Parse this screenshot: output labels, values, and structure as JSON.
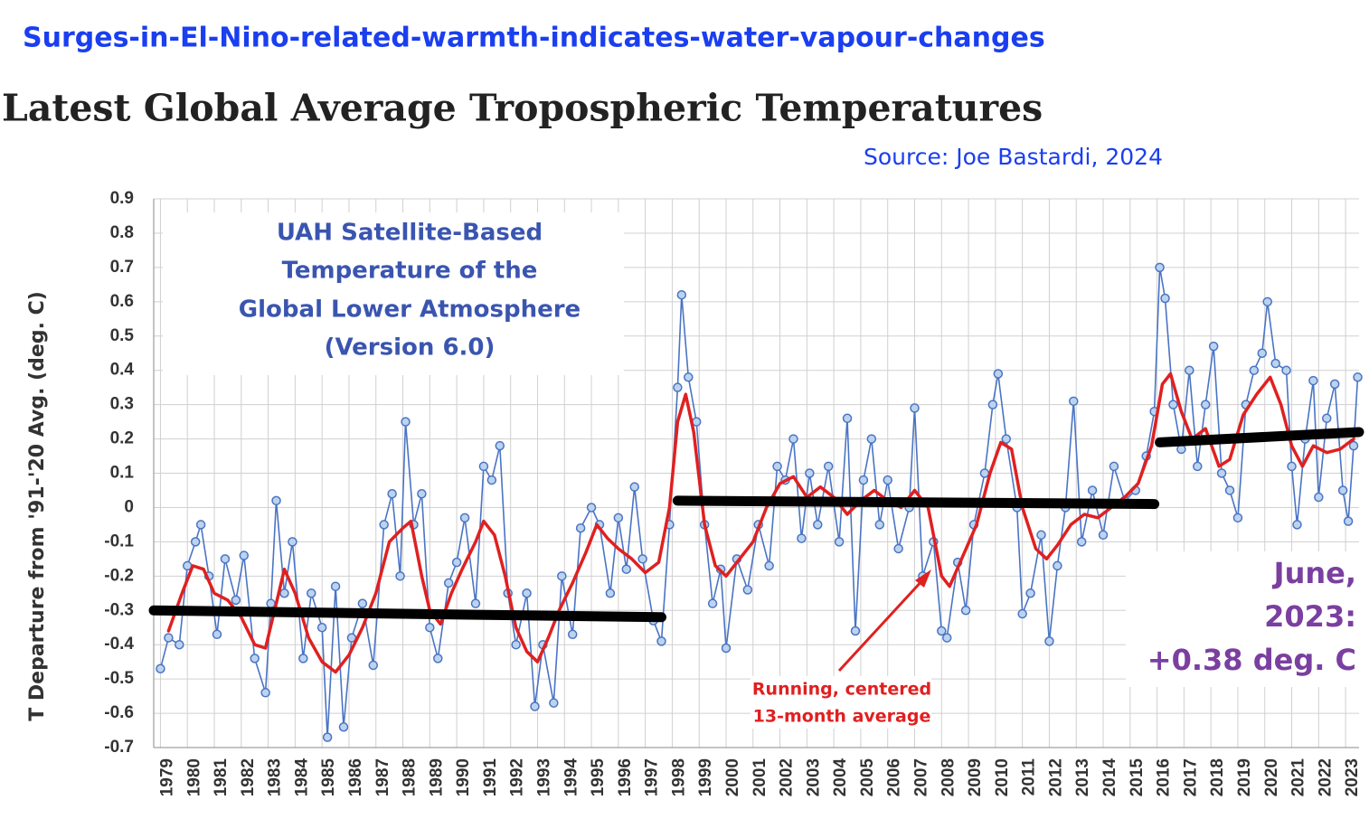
{
  "chart_data": {
    "type": "line",
    "heading": "Surges-in-El-Nino-related-warmth-indicates-water-vapour-changes",
    "title": "Latest Global Average Tropospheric Temperatures",
    "subtitle": "Source: Joe Bastardi, 2024",
    "y_label": "T Departure from '91-'20 Avg. (deg. C)",
    "box_text": [
      "UAH Satellite-Based",
      "Temperature of the",
      "Global Lower Atmosphere",
      "(Version 6.0)"
    ],
    "latest_text": [
      "June,",
      "2023:",
      "+0.38 deg. C"
    ],
    "average_text": [
      "Running, centered",
      "13-month average"
    ],
    "xlim": [
      1978.75,
      2023.5
    ],
    "ylim": [
      -0.7,
      0.9
    ],
    "yticks": [
      -0.7,
      -0.6,
      -0.5,
      -0.4,
      -0.3,
      -0.2,
      -0.1,
      0,
      0.1,
      0.2,
      0.3,
      0.4,
      0.5,
      0.6,
      0.7,
      0.8,
      0.9
    ],
    "xticks": [
      1979,
      1980,
      1981,
      1982,
      1983,
      1984,
      1985,
      1986,
      1987,
      1988,
      1989,
      1990,
      1991,
      1992,
      1993,
      1994,
      1995,
      1996,
      1997,
      1998,
      1999,
      2000,
      2001,
      2002,
      2003,
      2004,
      2005,
      2006,
      2007,
      2008,
      2009,
      2010,
      2011,
      2012,
      2013,
      2014,
      2015,
      2016,
      2017,
      2018,
      2019,
      2020,
      2021,
      2022,
      2023
    ],
    "grid": true,
    "series": [
      {
        "color": "#4a74c4",
        "markers": true,
        "x": [
          1979.0,
          1979.3,
          1979.7,
          1980.0,
          1980.3,
          1980.5,
          1980.8,
          1981.1,
          1981.4,
          1981.8,
          1982.1,
          1982.5,
          1982.9,
          1983.1,
          1983.3,
          1983.6,
          1983.9,
          1984.3,
          1984.6,
          1985.0,
          1985.2,
          1985.5,
          1985.8,
          1986.1,
          1986.5,
          1986.9,
          1987.3,
          1987.6,
          1987.9,
          1988.1,
          1988.4,
          1988.7,
          1989.0,
          1989.3,
          1989.7,
          1990.0,
          1990.3,
          1990.7,
          1991.0,
          1991.3,
          1991.6,
          1991.9,
          1992.2,
          1992.6,
          1992.9,
          1993.2,
          1993.6,
          1993.9,
          1994.3,
          1994.6,
          1995.0,
          1995.3,
          1995.7,
          1996.0,
          1996.3,
          1996.6,
          1996.9,
          1997.3,
          1997.6,
          1997.9,
          1998.2,
          1998.35,
          1998.6,
          1998.9,
          1999.2,
          1999.5,
          1999.8,
          2000.0,
          2000.4,
          2000.8,
          2001.2,
          2001.6,
          2001.9,
          2002.2,
          2002.5,
          2002.8,
          2003.1,
          2003.4,
          2003.8,
          2004.2,
          2004.5,
          2004.8,
          2005.1,
          2005.4,
          2005.7,
          2006.0,
          2006.4,
          2006.8,
          2007.0,
          2007.3,
          2007.7,
          2008.0,
          2008.2,
          2008.6,
          2008.9,
          2009.2,
          2009.6,
          2009.9,
          2010.1,
          2010.4,
          2010.8,
          2011.0,
          2011.3,
          2011.7,
          2012.0,
          2012.3,
          2012.6,
          2012.9,
          2013.2,
          2013.6,
          2014.0,
          2014.4,
          2014.8,
          2015.2,
          2015.6,
          2015.9,
          2016.1,
          2016.3,
          2016.6,
          2016.9,
          2017.2,
          2017.5,
          2017.8,
          2018.1,
          2018.4,
          2018.7,
          2019.0,
          2019.3,
          2019.6,
          2019.9,
          2020.1,
          2020.4,
          2020.8,
          2021.0,
          2021.2,
          2021.5,
          2021.8,
          2022.0,
          2022.3,
          2022.6,
          2022.9,
          2023.1,
          2023.3,
          2023.45
        ],
        "values": [
          -0.47,
          -0.38,
          -0.4,
          -0.17,
          -0.1,
          -0.05,
          -0.2,
          -0.37,
          -0.15,
          -0.27,
          -0.14,
          -0.44,
          -0.54,
          -0.28,
          0.02,
          -0.25,
          -0.1,
          -0.44,
          -0.25,
          -0.35,
          -0.67,
          -0.23,
          -0.64,
          -0.38,
          -0.28,
          -0.46,
          -0.05,
          0.04,
          -0.2,
          0.25,
          -0.05,
          0.04,
          -0.35,
          -0.44,
          -0.22,
          -0.16,
          -0.03,
          -0.28,
          0.12,
          0.08,
          0.18,
          -0.25,
          -0.4,
          -0.25,
          -0.58,
          -0.4,
          -0.57,
          -0.2,
          -0.37,
          -0.06,
          0.0,
          -0.05,
          -0.25,
          -0.03,
          -0.18,
          0.06,
          -0.15,
          -0.33,
          -0.39,
          -0.05,
          0.35,
          0.62,
          0.38,
          0.25,
          -0.05,
          -0.28,
          -0.18,
          -0.41,
          -0.15,
          -0.24,
          -0.05,
          -0.17,
          0.12,
          0.08,
          0.2,
          -0.09,
          0.1,
          -0.05,
          0.12,
          -0.1,
          0.26,
          -0.36,
          0.08,
          0.2,
          -0.05,
          0.08,
          -0.12,
          0.0,
          0.29,
          -0.2,
          -0.1,
          -0.36,
          -0.38,
          -0.16,
          -0.3,
          -0.05,
          0.1,
          0.3,
          0.39,
          0.2,
          0.0,
          -0.31,
          -0.25,
          -0.08,
          -0.39,
          -0.17,
          0.0,
          0.31,
          -0.1,
          0.05,
          -0.08,
          0.12,
          0.02,
          0.05,
          0.15,
          0.28,
          0.7,
          0.61,
          0.3,
          0.17,
          0.4,
          0.12,
          0.3,
          0.47,
          0.1,
          0.05,
          -0.03,
          0.3,
          0.4,
          0.45,
          0.6,
          0.42,
          0.4,
          0.12,
          -0.05,
          0.2,
          0.37,
          0.03,
          0.26,
          0.36,
          0.05,
          -0.04,
          0.18,
          0.38
        ]
      },
      {
        "color": "#e02020",
        "markers": false,
        "x": [
          1979.3,
          1979.8,
          1980.2,
          1980.6,
          1981.0,
          1981.5,
          1982.0,
          1982.5,
          1982.9,
          1983.3,
          1983.6,
          1984.0,
          1984.5,
          1985.0,
          1985.5,
          1986.0,
          1986.5,
          1987.0,
          1987.5,
          1988.0,
          1988.3,
          1988.7,
          1989.0,
          1989.4,
          1989.8,
          1990.2,
          1990.7,
          1991.0,
          1991.4,
          1991.8,
          1992.2,
          1992.6,
          1993.0,
          1993.4,
          1993.8,
          1994.3,
          1994.8,
          1995.2,
          1995.6,
          1996.0,
          1996.5,
          1997.0,
          1997.5,
          1997.9,
          1998.2,
          1998.5,
          1998.8,
          1999.2,
          1999.6,
          2000.0,
          2000.5,
          2001.0,
          2001.5,
          2002.0,
          2002.5,
          2003.0,
          2003.5,
          2004.0,
          2004.5,
          2005.0,
          2005.5,
          2006.0,
          2006.5,
          2007.0,
          2007.5,
          2008.0,
          2008.3,
          2008.8,
          2009.3,
          2009.8,
          2010.2,
          2010.6,
          2011.0,
          2011.5,
          2011.9,
          2012.3,
          2012.8,
          2013.3,
          2013.8,
          2014.3,
          2014.8,
          2015.3,
          2015.8,
          2016.2,
          2016.5,
          2016.9,
          2017.3,
          2017.8,
          2018.3,
          2018.7,
          2019.2,
          2019.7,
          2020.2,
          2020.6,
          2021.0,
          2021.4,
          2021.8,
          2022.3,
          2022.8,
          2023.3
        ],
        "values": [
          -0.36,
          -0.25,
          -0.17,
          -0.18,
          -0.25,
          -0.27,
          -0.32,
          -0.4,
          -0.41,
          -0.28,
          -0.18,
          -0.25,
          -0.38,
          -0.45,
          -0.48,
          -0.43,
          -0.35,
          -0.25,
          -0.1,
          -0.06,
          -0.04,
          -0.2,
          -0.3,
          -0.34,
          -0.25,
          -0.18,
          -0.1,
          -0.04,
          -0.08,
          -0.2,
          -0.35,
          -0.42,
          -0.45,
          -0.38,
          -0.3,
          -0.22,
          -0.13,
          -0.05,
          -0.09,
          -0.12,
          -0.15,
          -0.19,
          -0.16,
          0.0,
          0.25,
          0.33,
          0.22,
          -0.05,
          -0.17,
          -0.2,
          -0.15,
          -0.1,
          0.0,
          0.07,
          0.09,
          0.03,
          0.06,
          0.03,
          -0.02,
          0.02,
          0.05,
          0.02,
          0.0,
          0.05,
          0.0,
          -0.2,
          -0.23,
          -0.14,
          -0.05,
          0.1,
          0.19,
          0.17,
          0.0,
          -0.12,
          -0.15,
          -0.11,
          -0.05,
          -0.02,
          -0.03,
          0.0,
          0.03,
          0.07,
          0.18,
          0.36,
          0.39,
          0.28,
          0.2,
          0.23,
          0.12,
          0.14,
          0.27,
          0.33,
          0.38,
          0.3,
          0.18,
          0.12,
          0.18,
          0.16,
          0.17,
          0.2
        ]
      },
      {
        "color": "#000000",
        "markers": false,
        "width": 11,
        "x": [
          1978.75,
          1997.6,
          null,
          1998.2,
          2015.9,
          null,
          2016.1,
          2023.5
        ],
        "values": [
          -0.3,
          -0.32,
          null,
          0.02,
          0.01,
          null,
          0.19,
          0.22
        ]
      }
    ]
  }
}
